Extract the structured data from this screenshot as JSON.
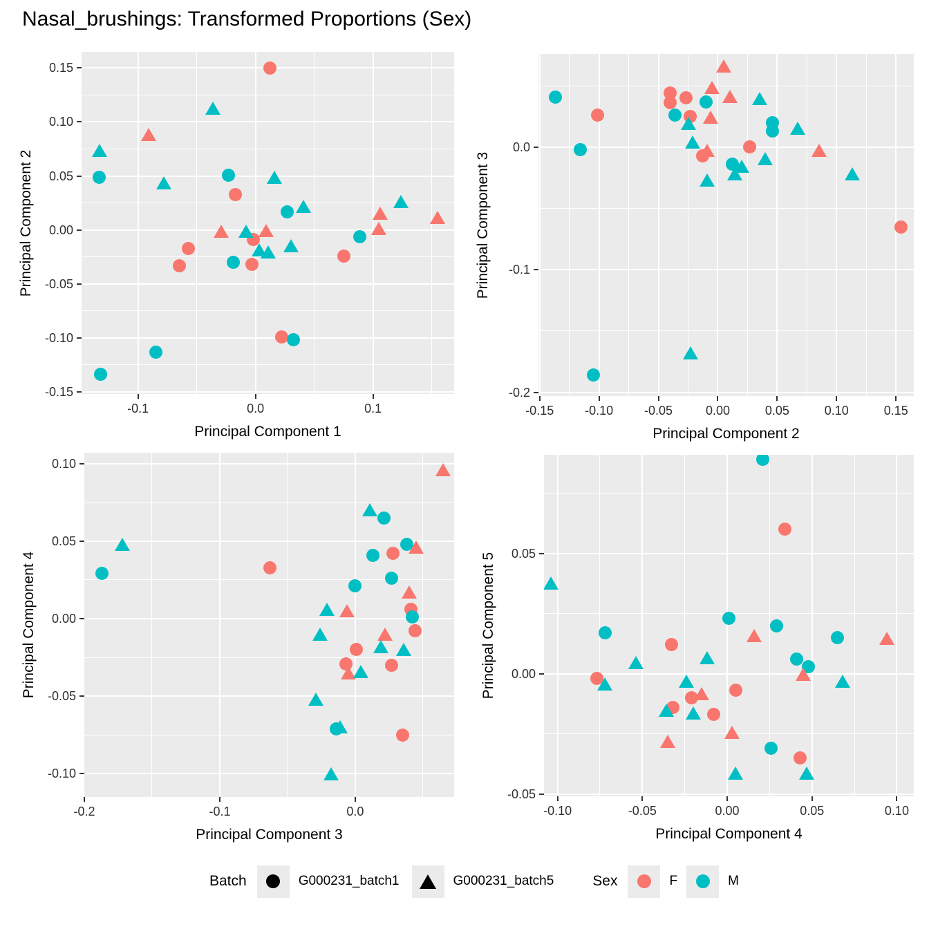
{
  "title": "Nasal_brushings: Transformed Proportions (Sex)",
  "colors": {
    "F": "#F8766D",
    "M": "#00BFC4",
    "panel_bg": "#EBEBEB",
    "grid": "#FFFFFF",
    "tick": "#333333",
    "batch_symbol": "#000000",
    "legend_key_bg": "#EBEBEB"
  },
  "legend": {
    "batch_title": "Batch",
    "batch_items": [
      {
        "label": "G000231_batch1",
        "shape": "circle"
      },
      {
        "label": "G000231_batch5",
        "shape": "triangle"
      }
    ],
    "sex_title": "Sex",
    "sex_items": [
      {
        "label": "F",
        "color_key": "F"
      },
      {
        "label": "M",
        "color_key": "M"
      }
    ]
  },
  "point_format": [
    "x",
    "y",
    "sex: F|M (color)",
    "shape: c=circle(G000231_batch1) t=triangle(G000231_batch5)"
  ],
  "chart_data": [
    {
      "type": "scatter",
      "xlabel": "Principal Component 1",
      "ylabel": "Principal Component 2",
      "xlim": [
        -0.148,
        0.169
      ],
      "ylim": [
        -0.152,
        0.165
      ],
      "xticks": [
        -0.1,
        0.0,
        0.1
      ],
      "xtick_labels": [
        "-0.1",
        "0.0",
        "0.1"
      ],
      "yticks": [
        -0.15,
        -0.1,
        -0.05,
        0.0,
        0.05,
        0.1,
        0.15
      ],
      "ytick_labels": [
        "-0.15",
        "-0.10",
        "-0.05",
        "0.00",
        "0.05",
        "0.10",
        "0.15"
      ],
      "grid": true,
      "legend_position": "bottom",
      "points": [
        [
          0.012,
          0.15,
          "F",
          "c"
        ],
        [
          -0.017,
          0.033,
          "F",
          "c"
        ],
        [
          -0.002,
          -0.009,
          "F",
          "c"
        ],
        [
          -0.057,
          -0.017,
          "F",
          "c"
        ],
        [
          -0.065,
          -0.033,
          "F",
          "c"
        ],
        [
          -0.003,
          -0.032,
          "F",
          "c"
        ],
        [
          0.075,
          -0.024,
          "F",
          "c"
        ],
        [
          0.022,
          -0.099,
          "F",
          "c"
        ],
        [
          -0.133,
          0.049,
          "M",
          "c"
        ],
        [
          -0.023,
          0.051,
          "M",
          "c"
        ],
        [
          0.027,
          0.017,
          "M",
          "c"
        ],
        [
          -0.019,
          -0.03,
          "M",
          "c"
        ],
        [
          0.089,
          -0.006,
          "M",
          "c"
        ],
        [
          0.032,
          -0.102,
          "M",
          "c"
        ],
        [
          -0.085,
          -0.113,
          "M",
          "c"
        ],
        [
          -0.132,
          -0.134,
          "M",
          "c"
        ],
        [
          -0.091,
          0.087,
          "F",
          "t"
        ],
        [
          -0.029,
          -0.003,
          "F",
          "t"
        ],
        [
          0.009,
          -0.002,
          "F",
          "t"
        ],
        [
          0.106,
          0.014,
          "F",
          "t"
        ],
        [
          0.105,
          0.0,
          "F",
          "t"
        ],
        [
          0.155,
          0.01,
          "F",
          "t"
        ],
        [
          -0.036,
          0.111,
          "M",
          "t"
        ],
        [
          -0.133,
          0.072,
          "M",
          "t"
        ],
        [
          -0.078,
          0.042,
          "M",
          "t"
        ],
        [
          0.016,
          0.047,
          "M",
          "t"
        ],
        [
          0.041,
          0.02,
          "M",
          "t"
        ],
        [
          0.124,
          0.025,
          "M",
          "t"
        ],
        [
          -0.008,
          -0.003,
          "M",
          "t"
        ],
        [
          0.003,
          -0.02,
          "M",
          "t"
        ],
        [
          0.011,
          -0.022,
          "M",
          "t"
        ],
        [
          0.03,
          -0.016,
          "M",
          "t"
        ]
      ]
    },
    {
      "type": "scatter",
      "xlabel": "Principal Component 2",
      "ylabel": "Principal Component 3",
      "xlim": [
        -0.151,
        0.165
      ],
      "ylim": [
        -0.203,
        0.076
      ],
      "xticks": [
        -0.15,
        -0.1,
        -0.05,
        0.0,
        0.05,
        0.1,
        0.15
      ],
      "xtick_labels": [
        "-0.15",
        "-0.10",
        "-0.05",
        "0.00",
        "0.05",
        "0.10",
        "0.15"
      ],
      "yticks": [
        0.0,
        -0.1,
        -0.2
      ],
      "ytick_labels": [
        "0.0",
        "-0.1",
        "-0.2"
      ],
      "grid": true,
      "legend_position": "bottom",
      "points": [
        [
          -0.04,
          0.044,
          "F",
          "c"
        ],
        [
          -0.04,
          0.036,
          "F",
          "c"
        ],
        [
          -0.027,
          0.04,
          "F",
          "c"
        ],
        [
          -0.101,
          0.026,
          "F",
          "c"
        ],
        [
          -0.023,
          0.025,
          "F",
          "c"
        ],
        [
          -0.013,
          -0.007,
          "F",
          "c"
        ],
        [
          0.027,
          0.0,
          "F",
          "c"
        ],
        [
          0.154,
          -0.065,
          "F",
          "c"
        ],
        [
          -0.137,
          0.041,
          "M",
          "c"
        ],
        [
          -0.01,
          0.037,
          "M",
          "c"
        ],
        [
          -0.036,
          0.026,
          "M",
          "c"
        ],
        [
          0.046,
          0.02,
          "M",
          "c"
        ],
        [
          0.046,
          0.013,
          "M",
          "c"
        ],
        [
          -0.116,
          -0.002,
          "M",
          "c"
        ],
        [
          0.012,
          -0.014,
          "M",
          "c"
        ],
        [
          -0.105,
          -0.186,
          "M",
          "c"
        ],
        [
          0.005,
          0.065,
          "F",
          "t"
        ],
        [
          -0.005,
          0.047,
          "F",
          "t"
        ],
        [
          0.01,
          0.04,
          "F",
          "t"
        ],
        [
          -0.006,
          0.023,
          "F",
          "t"
        ],
        [
          -0.009,
          -0.004,
          "F",
          "t"
        ],
        [
          0.085,
          -0.004,
          "F",
          "t"
        ],
        [
          0.035,
          0.038,
          "M",
          "t"
        ],
        [
          -0.025,
          0.018,
          "M",
          "t"
        ],
        [
          0.067,
          0.014,
          "M",
          "t"
        ],
        [
          -0.021,
          0.003,
          "M",
          "t"
        ],
        [
          0.02,
          -0.017,
          "M",
          "t"
        ],
        [
          0.014,
          -0.023,
          "M",
          "t"
        ],
        [
          0.04,
          -0.011,
          "M",
          "t"
        ],
        [
          -0.009,
          -0.028,
          "M",
          "t"
        ],
        [
          0.113,
          -0.023,
          "M",
          "t"
        ],
        [
          -0.023,
          -0.169,
          "M",
          "t"
        ]
      ]
    },
    {
      "type": "scatter",
      "xlabel": "Principal Component 3",
      "ylabel": "Principal Component 4",
      "xlim": [
        -0.2,
        0.073
      ],
      "ylim": [
        -0.115,
        0.107
      ],
      "xticks": [
        -0.2,
        -0.1,
        0.0
      ],
      "xtick_labels": [
        "-0.2",
        "-0.1",
        "0.0"
      ],
      "yticks": [
        -0.1,
        -0.05,
        0.0,
        0.05,
        0.1
      ],
      "ytick_labels": [
        "-0.10",
        "-0.05",
        "0.00",
        "0.05",
        "0.10"
      ],
      "grid": true,
      "legend_position": "bottom",
      "points": [
        [
          -0.063,
          0.033,
          "F",
          "c"
        ],
        [
          0.028,
          0.042,
          "F",
          "c"
        ],
        [
          0.041,
          0.006,
          "F",
          "c"
        ],
        [
          0.044,
          -0.008,
          "F",
          "c"
        ],
        [
          0.001,
          -0.02,
          "F",
          "c"
        ],
        [
          -0.007,
          -0.029,
          "F",
          "c"
        ],
        [
          0.027,
          -0.03,
          "F",
          "c"
        ],
        [
          0.035,
          -0.075,
          "F",
          "c"
        ],
        [
          0.021,
          0.065,
          "M",
          "c"
        ],
        [
          -0.187,
          0.029,
          "M",
          "c"
        ],
        [
          0.038,
          0.048,
          "M",
          "c"
        ],
        [
          0.013,
          0.041,
          "M",
          "c"
        ],
        [
          0.027,
          0.026,
          "M",
          "c"
        ],
        [
          0.0,
          0.021,
          "M",
          "c"
        ],
        [
          0.042,
          0.001,
          "M",
          "c"
        ],
        [
          -0.014,
          -0.071,
          "M",
          "c"
        ],
        [
          0.065,
          0.095,
          "F",
          "t"
        ],
        [
          0.045,
          0.045,
          "F",
          "t"
        ],
        [
          0.04,
          0.016,
          "F",
          "t"
        ],
        [
          -0.006,
          0.004,
          "F",
          "t"
        ],
        [
          0.022,
          -0.011,
          "F",
          "t"
        ],
        [
          -0.005,
          -0.036,
          "F",
          "t"
        ],
        [
          0.011,
          0.069,
          "M",
          "t"
        ],
        [
          -0.172,
          0.047,
          "M",
          "t"
        ],
        [
          -0.021,
          0.005,
          "M",
          "t"
        ],
        [
          -0.026,
          -0.011,
          "M",
          "t"
        ],
        [
          0.019,
          -0.019,
          "M",
          "t"
        ],
        [
          0.036,
          -0.021,
          "M",
          "t"
        ],
        [
          0.004,
          -0.035,
          "M",
          "t"
        ],
        [
          -0.029,
          -0.053,
          "M",
          "t"
        ],
        [
          -0.011,
          -0.071,
          "M",
          "t"
        ],
        [
          -0.018,
          -0.101,
          "M",
          "t"
        ]
      ]
    },
    {
      "type": "scatter",
      "xlabel": "Principal Component 4",
      "ylabel": "Principal Component 5",
      "xlim": [
        -0.108,
        0.11
      ],
      "ylim": [
        -0.051,
        0.091
      ],
      "xticks": [
        -0.1,
        -0.05,
        0.0,
        0.05,
        0.1
      ],
      "xtick_labels": [
        "-0.10",
        "-0.05",
        "0.00",
        "0.05",
        "0.10"
      ],
      "yticks": [
        -0.05,
        0.0,
        0.05
      ],
      "ytick_labels": [
        "-0.05",
        "0.00",
        "0.05"
      ],
      "grid": true,
      "legend_position": "bottom",
      "points": [
        [
          0.034,
          0.06,
          "F",
          "c"
        ],
        [
          -0.033,
          0.012,
          "F",
          "c"
        ],
        [
          -0.077,
          -0.002,
          "F",
          "c"
        ],
        [
          -0.021,
          -0.01,
          "F",
          "c"
        ],
        [
          0.005,
          -0.007,
          "F",
          "c"
        ],
        [
          -0.032,
          -0.014,
          "F",
          "c"
        ],
        [
          -0.008,
          -0.017,
          "F",
          "c"
        ],
        [
          0.043,
          -0.035,
          "F",
          "c"
        ],
        [
          0.021,
          0.089,
          "M",
          "c"
        ],
        [
          0.001,
          0.023,
          "M",
          "c"
        ],
        [
          -0.072,
          0.017,
          "M",
          "c"
        ],
        [
          0.029,
          0.02,
          "M",
          "c"
        ],
        [
          0.065,
          0.015,
          "M",
          "c"
        ],
        [
          0.041,
          0.006,
          "M",
          "c"
        ],
        [
          0.048,
          0.003,
          "M",
          "c"
        ],
        [
          0.026,
          -0.031,
          "M",
          "c"
        ],
        [
          0.016,
          0.015,
          "F",
          "t"
        ],
        [
          0.094,
          0.014,
          "F",
          "t"
        ],
        [
          0.045,
          -0.001,
          "F",
          "t"
        ],
        [
          -0.015,
          -0.009,
          "F",
          "t"
        ],
        [
          0.003,
          -0.025,
          "F",
          "t"
        ],
        [
          -0.035,
          -0.029,
          "F",
          "t"
        ],
        [
          -0.104,
          0.037,
          "M",
          "t"
        ],
        [
          -0.054,
          0.004,
          "M",
          "t"
        ],
        [
          -0.012,
          0.006,
          "M",
          "t"
        ],
        [
          -0.072,
          -0.005,
          "M",
          "t"
        ],
        [
          -0.024,
          -0.004,
          "M",
          "t"
        ],
        [
          0.068,
          -0.004,
          "M",
          "t"
        ],
        [
          -0.036,
          -0.016,
          "M",
          "t"
        ],
        [
          -0.02,
          -0.017,
          "M",
          "t"
        ],
        [
          0.005,
          -0.042,
          "M",
          "t"
        ],
        [
          0.047,
          -0.042,
          "M",
          "t"
        ]
      ]
    }
  ]
}
